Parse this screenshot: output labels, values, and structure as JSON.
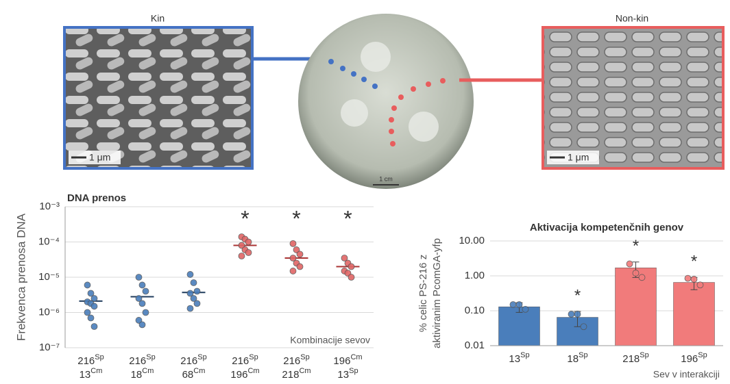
{
  "figure": {
    "kin_label": "Kin",
    "nonkin_label": "Non-kin",
    "scale_kin": "1 μm",
    "scale_nonkin": "1 μm",
    "scale_plate": "1 cm"
  },
  "chart_data": [
    {
      "type": "dotplot",
      "title": "DNA prenos",
      "y_label": "Frekvenca prenosa DNA",
      "x_label": "Kombinacije sevov",
      "log_scale": true,
      "ylim": [
        1e-07,
        0.001
      ],
      "yticks": [
        {
          "value": 1e-07,
          "label": "10⁻⁷"
        },
        {
          "value": 1e-06,
          "label": "10⁻⁶"
        },
        {
          "value": 1e-05,
          "label": "10⁻⁵"
        },
        {
          "value": 0.0001,
          "label": "10⁻⁴"
        },
        {
          "value": 0.001,
          "label": "10⁻³"
        }
      ],
      "grid": true,
      "categories": [
        [
          [
            "216",
            "Sp"
          ],
          [
            "13",
            "Cm"
          ]
        ],
        [
          [
            "216",
            "Sp"
          ],
          [
            "18",
            "Cm"
          ]
        ],
        [
          [
            "216",
            "Sp"
          ],
          [
            "68",
            "Cm"
          ]
        ],
        [
          [
            "216",
            "Sp"
          ],
          [
            "196",
            "Cm"
          ]
        ],
        [
          [
            "216",
            "Sp"
          ],
          [
            "218",
            "Cm"
          ]
        ],
        [
          [
            "196",
            "Cm"
          ],
          [
            "13",
            "Sp"
          ]
        ]
      ],
      "colors": [
        "#4a7ebb",
        "#4a7ebb",
        "#4a7ebb",
        "#e06666",
        "#e06666",
        "#e06666"
      ],
      "means": [
        2.1e-06,
        2.8e-06,
        3.7e-06,
        8e-05,
        3.5e-05,
        2e-05
      ],
      "points": [
        [
          6e-06,
          3.5e-06,
          2.5e-06,
          2e-06,
          1.8e-06,
          1.5e-06,
          1e-06,
          7e-07,
          4e-07
        ],
        [
          1e-05,
          6e-06,
          4e-06,
          2.5e-06,
          1.8e-06,
          1e-06,
          6e-07,
          4.5e-07
        ],
        [
          1.2e-05,
          7e-06,
          4e-06,
          3.5e-06,
          2.5e-06,
          1.8e-06,
          1.3e-06
        ],
        [
          0.00014,
          0.00012,
          0.0001,
          8e-05,
          6e-05,
          5e-05,
          4e-05
        ],
        [
          9e-05,
          6e-05,
          4.5e-05,
          3.5e-05,
          2.5e-05,
          2e-05,
          1.5e-05
        ],
        [
          3.5e-05,
          2.5e-05,
          2e-05,
          1.5e-05,
          1.3e-05,
          1e-05
        ]
      ],
      "significance": [
        null,
        null,
        null,
        "*",
        "*",
        "*"
      ]
    },
    {
      "type": "bar",
      "title": "Aktivacija kompetenčnih genov",
      "y_label": [
        "% celic PS-216 z",
        "aktiviranim  PcomGA-yfp"
      ],
      "x_label": "Sev v interakciji",
      "log_scale": true,
      "ylim": [
        0.01,
        10
      ],
      "yticks": [
        0.01,
        {
          "value": 0.1,
          "label": "0.10"
        },
        {
          "value": 1,
          "label": "1.00"
        },
        {
          "value": 10,
          "label": "10.00"
        }
      ],
      "grid": true,
      "categories": [
        [
          [
            "13",
            "Sp"
          ]
        ],
        [
          [
            "18",
            "Sp"
          ]
        ],
        [
          [
            "218",
            "Sp"
          ]
        ],
        [
          [
            "196",
            "Sp"
          ]
        ]
      ],
      "colors": [
        "#4a7ebb",
        "#4a7ebb",
        "#f17b7b",
        "#f17b7b"
      ],
      "values": [
        0.13,
        0.065,
        1.7,
        0.65
      ],
      "errors": [
        0.04,
        0.03,
        0.8,
        0.25
      ],
      "points": [
        [
          0.15,
          0.15,
          0.11
        ],
        [
          0.08,
          0.08,
          0.035
        ],
        [
          2.2,
          1.2,
          0.9
        ],
        [
          0.85,
          0.8,
          0.55
        ]
      ],
      "significance": [
        null,
        "*",
        "*",
        "*"
      ]
    }
  ]
}
